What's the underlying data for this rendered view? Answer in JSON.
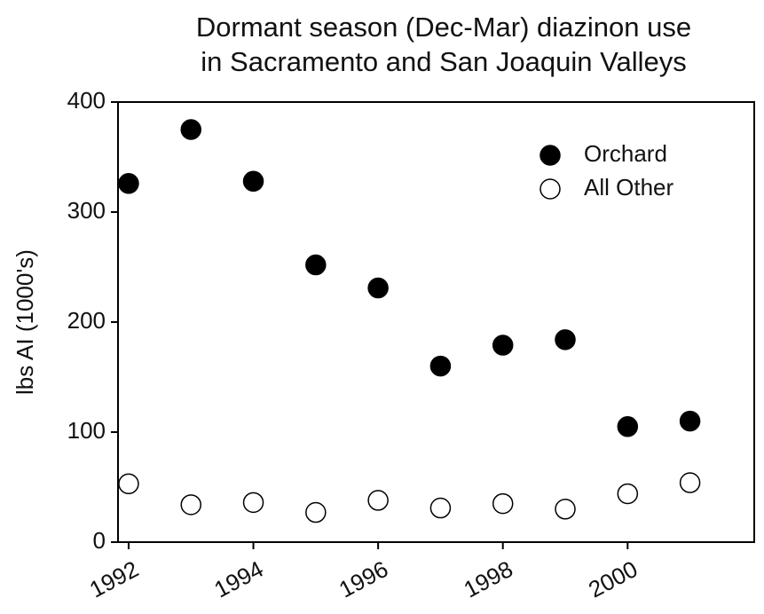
{
  "chart_data": {
    "type": "scatter",
    "title": [
      "Dormant season (Dec-Mar) diazinon use",
      "in Sacramento and San Joaquin Valleys"
    ],
    "y_label": "lbs AI (1000's)",
    "x": [
      1992,
      1993,
      1994,
      1995,
      1996,
      1997,
      1998,
      1999,
      2000,
      2001
    ],
    "series": [
      {
        "name": "Orchard",
        "color": "#000000",
        "marker": "filled",
        "values": [
          326,
          375,
          328,
          252,
          231,
          160,
          179,
          184,
          105,
          110
        ]
      },
      {
        "name": "All Other",
        "color": "#000000",
        "marker": "open",
        "values": [
          53,
          34,
          36,
          27,
          38,
          31,
          35,
          30,
          44,
          54
        ]
      }
    ],
    "xlim": [
      1991.83,
      2002.03
    ],
    "xticks": [
      1992,
      1994,
      1996,
      1998,
      2000
    ],
    "ylim": [
      0,
      400
    ],
    "yticks": [
      0,
      100,
      200,
      300,
      400
    ],
    "grid": false,
    "legend": "upper right"
  }
}
